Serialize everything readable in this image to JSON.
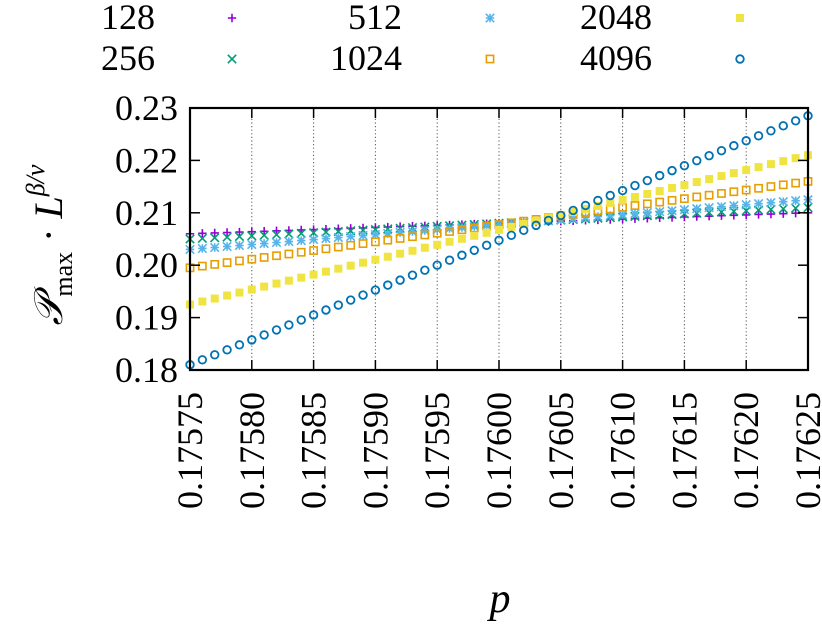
{
  "chart_data": {
    "type": "scatter",
    "xlabel": "p",
    "ylabel": "P_max · L^{β/ν}",
    "xlim": [
      0.17575,
      0.17625
    ],
    "ylim": [
      0.18,
      0.23
    ],
    "grid": {
      "x": true,
      "y": false
    },
    "legend_position": "top, outside plot",
    "x_ticks": [
      "0.17575",
      "0.17580",
      "0.17585",
      "0.17590",
      "0.17595",
      "0.17600",
      "0.17605",
      "0.17610",
      "0.17615",
      "0.17620",
      "0.17625"
    ],
    "y_ticks": [
      "0.18",
      "0.19",
      "0.20",
      "0.21",
      "0.22",
      "0.23"
    ],
    "x": {
      "start": 0.17575,
      "step": 1e-05,
      "count": 51
    },
    "series": [
      {
        "name": "128",
        "color": "#9400d3",
        "marker": "plus",
        "y_start": 0.206,
        "y_end": 0.21
      },
      {
        "name": "256",
        "color": "#009e73",
        "marker": "cross",
        "y_start": 0.205,
        "y_end": 0.211
      },
      {
        "name": "512",
        "color": "#56b4e9",
        "marker": "star",
        "y_start": 0.203,
        "y_end": 0.2125
      },
      {
        "name": "1024",
        "color": "#e69f00",
        "marker": "open-square",
        "y_start": 0.1995,
        "y_end": 0.216
      },
      {
        "name": "2048",
        "color": "#f0e442",
        "marker": "filled-square",
        "y_start": 0.1925,
        "y_end": 0.221
      },
      {
        "name": "4096",
        "color": "#0072b2",
        "marker": "open-circle",
        "y_start": 0.181,
        "y_end": 0.2285
      }
    ]
  }
}
